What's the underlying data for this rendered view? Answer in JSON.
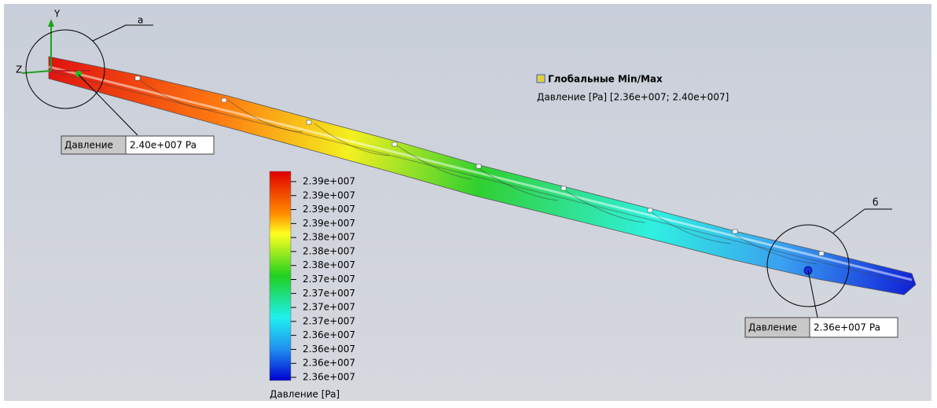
{
  "view": {
    "axes": {
      "y": "Y",
      "z": "Z"
    },
    "callouts": {
      "a": "а",
      "b": "б"
    },
    "probe_max": {
      "label": "Давление",
      "value": "2.40e+007 Pa"
    },
    "probe_min": {
      "label": "Давление",
      "value": "2.36e+007 Pa"
    },
    "global_minmax": {
      "title": "Глобальные Min/Max",
      "text": "Давление [Pa] [2.36e+007; 2.40e+007]"
    },
    "legend": {
      "title": "Давление [Pa]",
      "labels": [
        "2.39e+007",
        "2.39e+007",
        "2.39e+007",
        "2.39e+007",
        "2.38e+007",
        "2.38e+007",
        "2.38e+007",
        "2.37e+007",
        "2.37e+007",
        "2.37e+007",
        "2.37e+007",
        "2.36e+007",
        "2.36e+007",
        "2.36e+007",
        "2.36e+007"
      ]
    }
  }
}
